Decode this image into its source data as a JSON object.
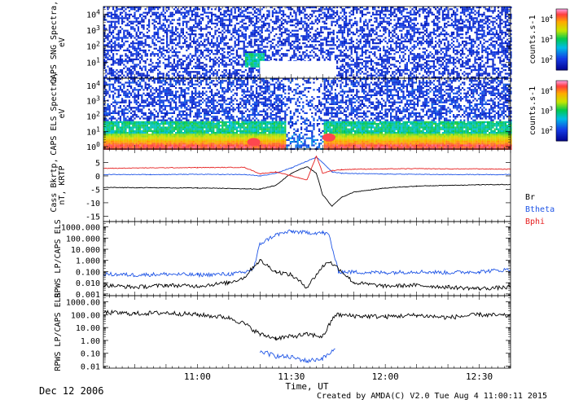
{
  "footer": {
    "date": "Dec 12 2006",
    "credit": "Created by AMDA(C) V2.0 Tue Aug  4 11:00:11 2015"
  },
  "time_axis": {
    "label": "Time, UT",
    "range_min": [
      0,
      130
    ],
    "tick_minutes": [
      30,
      60,
      90,
      120
    ],
    "tick_labels": [
      "11:00",
      "11:30",
      "12:00",
      "12:30"
    ]
  },
  "colors": {
    "line_black": "#000000",
    "line_blue": "#1f55e6",
    "line_red": "#e62020",
    "gap_white": "#ffffff"
  },
  "chart_data": [
    {
      "type": "heatmap",
      "name": "CAPS SNG Spectra",
      "ylabel_lines": [
        "CAPS SNG Spectra,",
        "eV"
      ],
      "yscale": "log",
      "ylim": [
        1,
        30000
      ],
      "ytick_labels": [
        "10^1",
        "10^2",
        "10^3",
        "10^4"
      ],
      "ytick_values": [
        10,
        100,
        1000,
        10000
      ],
      "colorbar": {
        "label": "counts.s-1",
        "tick_labels": [
          "10^2",
          "10^3",
          "10^4"
        ],
        "tick_values": [
          100,
          1000,
          10000
        ]
      },
      "data_gap": {
        "t_start_min": 50,
        "t_end_min": 74,
        "e_max": 12
      },
      "feature": {
        "t_min": 48,
        "e_range": [
          5,
          40
        ],
        "level": "high"
      }
    },
    {
      "type": "heatmap",
      "name": "CAPS ELS Spectra",
      "ylabel_lines": [
        "CAPS ELS Spectra,",
        "eV"
      ],
      "yscale": "log",
      "ylim": [
        0.7,
        30000
      ],
      "ytick_labels": [
        "10^0",
        "10^1",
        "10^2",
        "10^3",
        "10^4"
      ],
      "ytick_values": [
        1,
        10,
        100,
        1000,
        10000
      ],
      "colorbar": {
        "label": "counts.s-1",
        "tick_labels": [
          "10^2",
          "10^3",
          "10^4"
        ],
        "tick_values": [
          100,
          1000,
          10000
        ]
      },
      "sheath_band": {
        "e_range": [
          1,
          8
        ],
        "quiet_interval_min": [
          58,
          70
        ]
      },
      "spots": [
        {
          "t_min": 48,
          "e": 2
        },
        {
          "t_min": 72,
          "e": 4
        }
      ]
    },
    {
      "type": "line",
      "name": "Cass Bkrtp",
      "ylabel_lines": [
        "Cass Bkrtp,",
        "nT, KRTP"
      ],
      "ylim": [
        -17,
        10
      ],
      "ytick_labels": [
        "5",
        "0",
        "-5",
        "-10",
        "-15"
      ],
      "ytick_values": [
        5,
        0,
        -5,
        -10,
        -15
      ],
      "x": [
        0,
        15,
        30,
        45,
        50,
        55,
        60,
        65,
        68,
        70,
        73,
        76,
        80,
        90,
        100,
        110,
        120,
        130
      ],
      "series": [
        {
          "name": "Br",
          "color": "#000000",
          "values": [
            -4.3,
            -4.4,
            -4.5,
            -4.8,
            -4.9,
            -3.5,
            1.0,
            3.5,
            1.0,
            -7.0,
            -11.3,
            -8.0,
            -6.0,
            -4.5,
            -3.8,
            -3.5,
            -3.3,
            -3.2
          ]
        },
        {
          "name": "Btheta",
          "color": "#1f55e6",
          "values": [
            0.5,
            0.5,
            0.6,
            0.5,
            0.0,
            1.0,
            3.0,
            5.5,
            7.0,
            5.0,
            1.5,
            1.0,
            0.9,
            0.7,
            0.6,
            0.5,
            0.5,
            0.5
          ]
        },
        {
          "name": "Bphi",
          "color": "#e62020",
          "values": [
            2.8,
            3.0,
            3.1,
            3.2,
            0.8,
            1.5,
            0.0,
            -1.5,
            7.5,
            1.0,
            2.0,
            2.3,
            2.5,
            2.6,
            2.7,
            2.6,
            2.6,
            2.5
          ]
        }
      ],
      "legend": [
        "Br",
        "Btheta",
        "Bphi"
      ]
    },
    {
      "type": "line",
      "name": "RPWS LP/CAPS ELS",
      "ylabel_lines": [
        "RPWS LP/CAPS ELS"
      ],
      "yscale": "log",
      "ylim": [
        0.0007,
        3000
      ],
      "ytick_labels": [
        "1000.000",
        "100.000",
        "10.000",
        "1.000",
        "0.100",
        "0.010",
        "0.001"
      ],
      "ytick_values": [
        1000,
        100,
        10,
        1,
        0.1,
        0.01,
        0.001
      ],
      "x": [
        0,
        10,
        20,
        30,
        40,
        45,
        48,
        50,
        55,
        60,
        65,
        70,
        72,
        75,
        80,
        90,
        100,
        110,
        120,
        130
      ],
      "series": [
        {
          "name": "RPWS LP",
          "color": "#1f55e6",
          "values": [
            0.06,
            0.05,
            0.06,
            0.05,
            0.06,
            0.08,
            0.2,
            30,
            200,
            400,
            300,
            300,
            200,
            0.1,
            0.09,
            0.08,
            0.1,
            0.08,
            0.1,
            0.15
          ]
        },
        {
          "name": "CAPS ELS",
          "color": "#000000",
          "values": [
            0.006,
            0.004,
            0.006,
            0.005,
            0.01,
            0.03,
            0.3,
            1.0,
            0.1,
            0.05,
            0.004,
            0.3,
            0.8,
            0.2,
            0.01,
            0.005,
            0.006,
            0.004,
            0.003,
            0.004
          ]
        }
      ]
    },
    {
      "type": "line",
      "name": "RPWS LP/CAPS ELS",
      "ylabel_lines": [
        "RPWS LP/CAPS ELS"
      ],
      "yscale": "log",
      "ylim": [
        0.007,
        3000
      ],
      "ytick_labels": [
        "1000.00",
        "100.00",
        "10.00",
        "1.00",
        "0.10",
        "0.01"
      ],
      "ytick_values": [
        1000,
        100,
        10,
        1,
        0.1,
        0.01
      ],
      "x": [
        0,
        10,
        20,
        30,
        40,
        45,
        50,
        55,
        60,
        65,
        70,
        74,
        80,
        90,
        100,
        110,
        120,
        130
      ],
      "series": [
        {
          "name": "black",
          "color": "#000000",
          "values": [
            150,
            120,
            140,
            100,
            60,
            20,
            3,
            1.5,
            2,
            3,
            2,
            100,
            80,
            70,
            90,
            60,
            100,
            80
          ]
        },
        {
          "name": "blue",
          "color": "#1f55e6",
          "values": [
            null,
            null,
            null,
            null,
            null,
            null,
            0.15,
            0.06,
            0.05,
            0.025,
            0.04,
            0.2,
            null,
            null,
            null,
            null,
            null,
            null
          ]
        }
      ]
    }
  ]
}
